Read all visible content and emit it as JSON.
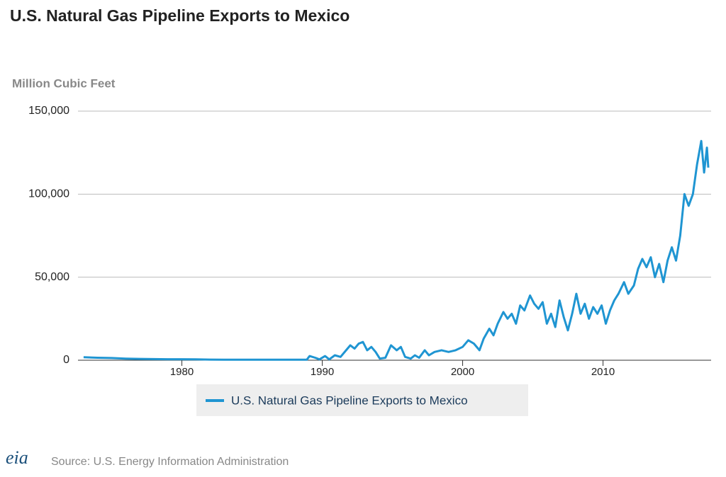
{
  "chart_data": {
    "type": "line",
    "title": "U.S. Natural Gas Pipeline Exports to Mexico",
    "y_label": "Million Cubic Feet",
    "source": "Source: U.S. Energy Information Administration",
    "logo": "eia",
    "x": [
      1973,
      1974,
      1975,
      1976,
      1977,
      1978,
      1979,
      1980,
      1981,
      1982,
      1983,
      1984,
      1985,
      1986,
      1987,
      1988,
      1988.9,
      1989.1,
      1989.5,
      1989.8,
      1990.2,
      1990.5,
      1990.9,
      1991.3,
      1991.7,
      1992,
      1992.3,
      1992.6,
      1992.9,
      1993.2,
      1993.5,
      1993.8,
      1994.1,
      1994.5,
      1994.9,
      1995.3,
      1995.6,
      1995.9,
      1996.3,
      1996.6,
      1996.9,
      1997.3,
      1997.6,
      1998,
      1998.5,
      1999,
      1999.5,
      2000,
      2000.4,
      2000.8,
      2001.2,
      2001.5,
      2001.9,
      2002.2,
      2002.5,
      2002.9,
      2003.2,
      2003.5,
      2003.8,
      2004.1,
      2004.4,
      2004.8,
      2005.1,
      2005.4,
      2005.7,
      2006,
      2006.3,
      2006.6,
      2006.9,
      2007.2,
      2007.5,
      2007.8,
      2008.1,
      2008.4,
      2008.7,
      2009,
      2009.3,
      2009.6,
      2009.9,
      2010.2,
      2010.5,
      2010.8,
      2011.1,
      2011.5,
      2011.8,
      2012.2,
      2012.5,
      2012.8,
      2013.1,
      2013.4,
      2013.7,
      2014,
      2014.3,
      2014.6,
      2014.9,
      2015.2,
      2015.5,
      2015.8,
      2016.1,
      2016.4,
      2016.7,
      2017,
      2017.2,
      2017.4,
      2017.5
    ],
    "series": [
      {
        "name": "U.S. Natural Gas Pipeline Exports to Mexico",
        "color": "#1f95d2",
        "values": [
          1800,
          1500,
          1300,
          1000,
          800,
          700,
          600,
          600,
          500,
          400,
          300,
          300,
          300,
          300,
          300,
          300,
          300,
          2500,
          1500,
          500,
          2500,
          500,
          3000,
          2000,
          6000,
          9000,
          7000,
          10000,
          11000,
          6000,
          8000,
          5000,
          1000,
          1500,
          9000,
          6000,
          8000,
          2000,
          1000,
          3000,
          1500,
          6000,
          3000,
          5000,
          6000,
          5000,
          6000,
          8000,
          12000,
          10000,
          6000,
          13000,
          19000,
          15000,
          22000,
          29000,
          25000,
          28000,
          22000,
          33000,
          30000,
          39000,
          34000,
          31000,
          35000,
          22000,
          28000,
          20000,
          36000,
          26000,
          18000,
          28000,
          40000,
          28000,
          34000,
          25000,
          32000,
          28000,
          33000,
          22000,
          30000,
          36000,
          40000,
          47000,
          40000,
          45000,
          55000,
          61000,
          56000,
          62000,
          50000,
          58000,
          47000,
          60000,
          68000,
          60000,
          75000,
          100000,
          93000,
          100000,
          118000,
          132000,
          113000,
          128000,
          116000
        ]
      }
    ],
    "xlim": [
      1972.6,
      2017.7
    ],
    "xticks": [
      1980,
      1990,
      2000,
      2010
    ],
    "ylim": [
      0,
      150000
    ],
    "yticks": [
      0,
      {
        "value": 50000,
        "label": "50,000"
      },
      {
        "value": 100000,
        "label": "100,000"
      },
      {
        "value": 150000,
        "label": "150,000"
      }
    ],
    "grid": true
  }
}
